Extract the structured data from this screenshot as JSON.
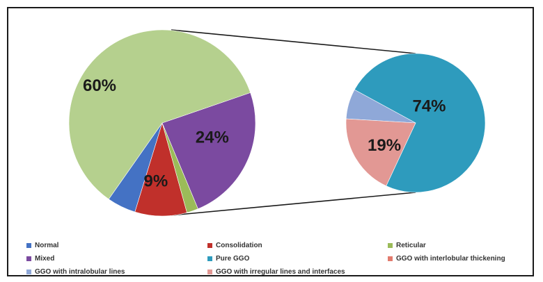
{
  "chart_data": [
    {
      "type": "pie",
      "categories": [
        "Normal",
        "Consolidation",
        "Reticular",
        "Mixed",
        "GGO"
      ],
      "values": [
        5,
        9,
        2,
        24,
        60
      ],
      "labels": [
        "",
        "9%",
        "",
        "24%",
        "60%"
      ],
      "colors": [
        "#4472c4",
        "#c0302b",
        "#9bbb59",
        "#7b4aa0",
        "#b5d08e"
      ]
    },
    {
      "type": "pie",
      "categories": [
        "Pure GGO",
        "GGO with intralobular lines",
        "GGO with irregular lines and interfaces"
      ],
      "values": [
        74,
        7,
        19
      ],
      "labels": [
        "74%",
        "",
        "19%"
      ],
      "colors": [
        "#2e9bbd",
        "#8fa8d8",
        "#e29894"
      ]
    }
  ],
  "legend": [
    {
      "label": "Normal",
      "color": "#4472c4"
    },
    {
      "label": "Consolidation",
      "color": "#c0302b"
    },
    {
      "label": "Reticular",
      "color": "#9bbb59"
    },
    {
      "label": "Mixed",
      "color": "#7b4aa0"
    },
    {
      "label": "Pure GGO",
      "color": "#2e9bbd"
    },
    {
      "label": "GGO with interlobular thickening",
      "color": "#e27b6e"
    },
    {
      "label": "GGO with intralobular lines",
      "color": "#8fa8d8"
    },
    {
      "label": "GGO with irregular lines and interfaces",
      "color": "#e29894"
    }
  ]
}
